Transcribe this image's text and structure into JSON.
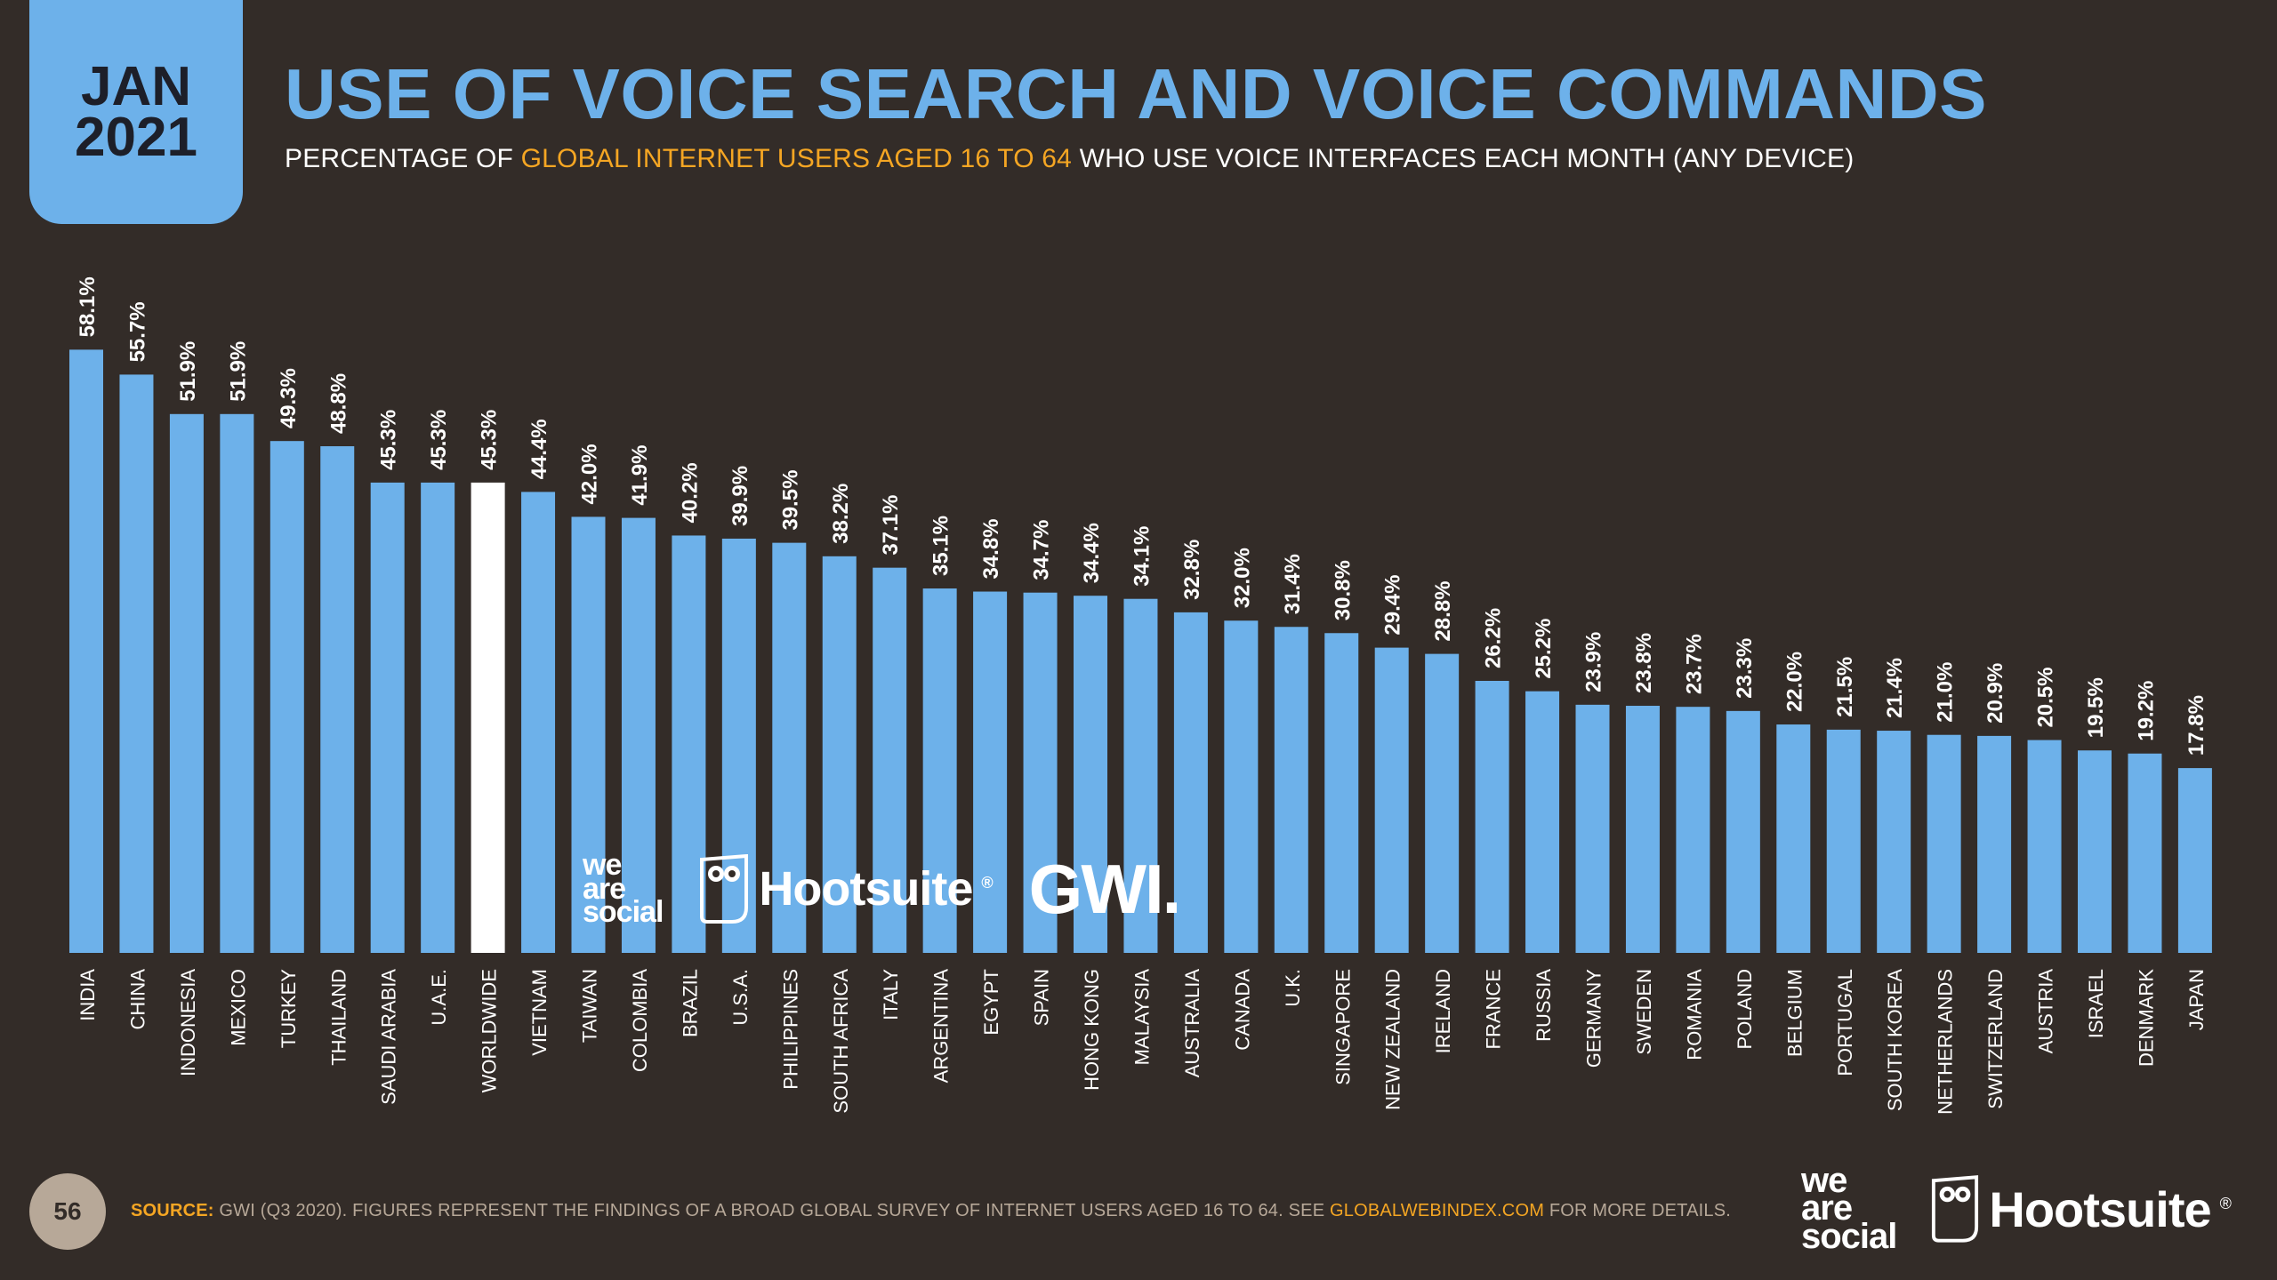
{
  "header": {
    "date_month": "JAN",
    "date_year": "2021",
    "title": "USE OF VOICE SEARCH AND VOICE COMMANDS",
    "subtitle_pre": "PERCENTAGE OF ",
    "subtitle_highlight": "GLOBAL INTERNET USERS AGED 16 TO 64",
    "subtitle_post": " WHO USE VOICE INTERFACES EACH MONTH (ANY DEVICE)"
  },
  "logos": {
    "we_are_social_line1": "we",
    "we_are_social_line2": "are",
    "we_are_social_line3": "social",
    "hootsuite": "Hootsuite",
    "hootsuite_mark": "®",
    "gwi": "GWI."
  },
  "footer": {
    "page_number": "56",
    "source_label": "SOURCE:",
    "source_text": " GWI (Q3 2020). FIGURES REPRESENT THE FINDINGS OF A BROAD GLOBAL SURVEY OF INTERNET USERS AGED 16 TO 64. SEE ",
    "source_link": "GLOBALWEBINDEX.COM",
    "source_tail": " FOR MORE DETAILS."
  },
  "colors": {
    "background": "#332c28",
    "bar": "#6db1ea",
    "highlight_bar": "#ffffff",
    "accent": "#f5a623",
    "text": "#ffffff"
  },
  "chart_data": {
    "type": "bar",
    "title": "USE OF VOICE SEARCH AND VOICE COMMANDS",
    "ylabel": "Percentage of global internet users aged 16 to 64",
    "ylim": [
      0,
      60
    ],
    "highlight_category": "WORLDWIDE",
    "value_suffix": "%",
    "categories": [
      "INDIA",
      "CHINA",
      "INDONESIA",
      "MEXICO",
      "TURKEY",
      "THAILAND",
      "SAUDI ARABIA",
      "U.A.E.",
      "WORLDWIDE",
      "VIETNAM",
      "TAIWAN",
      "COLOMBIA",
      "BRAZIL",
      "U.S.A.",
      "PHILIPPINES",
      "SOUTH AFRICA",
      "ITALY",
      "ARGENTINA",
      "EGYPT",
      "SPAIN",
      "HONG KONG",
      "MALAYSIA",
      "AUSTRALIA",
      "CANADA",
      "U.K.",
      "SINGAPORE",
      "NEW ZEALAND",
      "IRELAND",
      "FRANCE",
      "RUSSIA",
      "GERMANY",
      "SWEDEN",
      "ROMANIA",
      "POLAND",
      "BELGIUM",
      "PORTUGAL",
      "SOUTH KOREA",
      "NETHERLANDS",
      "SWITZERLAND",
      "AUSTRIA",
      "ISRAEL",
      "DENMARK",
      "JAPAN"
    ],
    "values": [
      58.1,
      55.7,
      51.9,
      51.9,
      49.3,
      48.8,
      45.3,
      45.3,
      45.3,
      44.4,
      42.0,
      41.9,
      40.2,
      39.9,
      39.5,
      38.2,
      37.1,
      35.1,
      34.8,
      34.7,
      34.4,
      34.1,
      32.8,
      32.0,
      31.4,
      30.8,
      29.4,
      28.8,
      26.2,
      25.2,
      23.9,
      23.8,
      23.7,
      23.3,
      22.0,
      21.5,
      21.4,
      21.0,
      20.9,
      20.5,
      19.5,
      19.2,
      17.8
    ]
  }
}
